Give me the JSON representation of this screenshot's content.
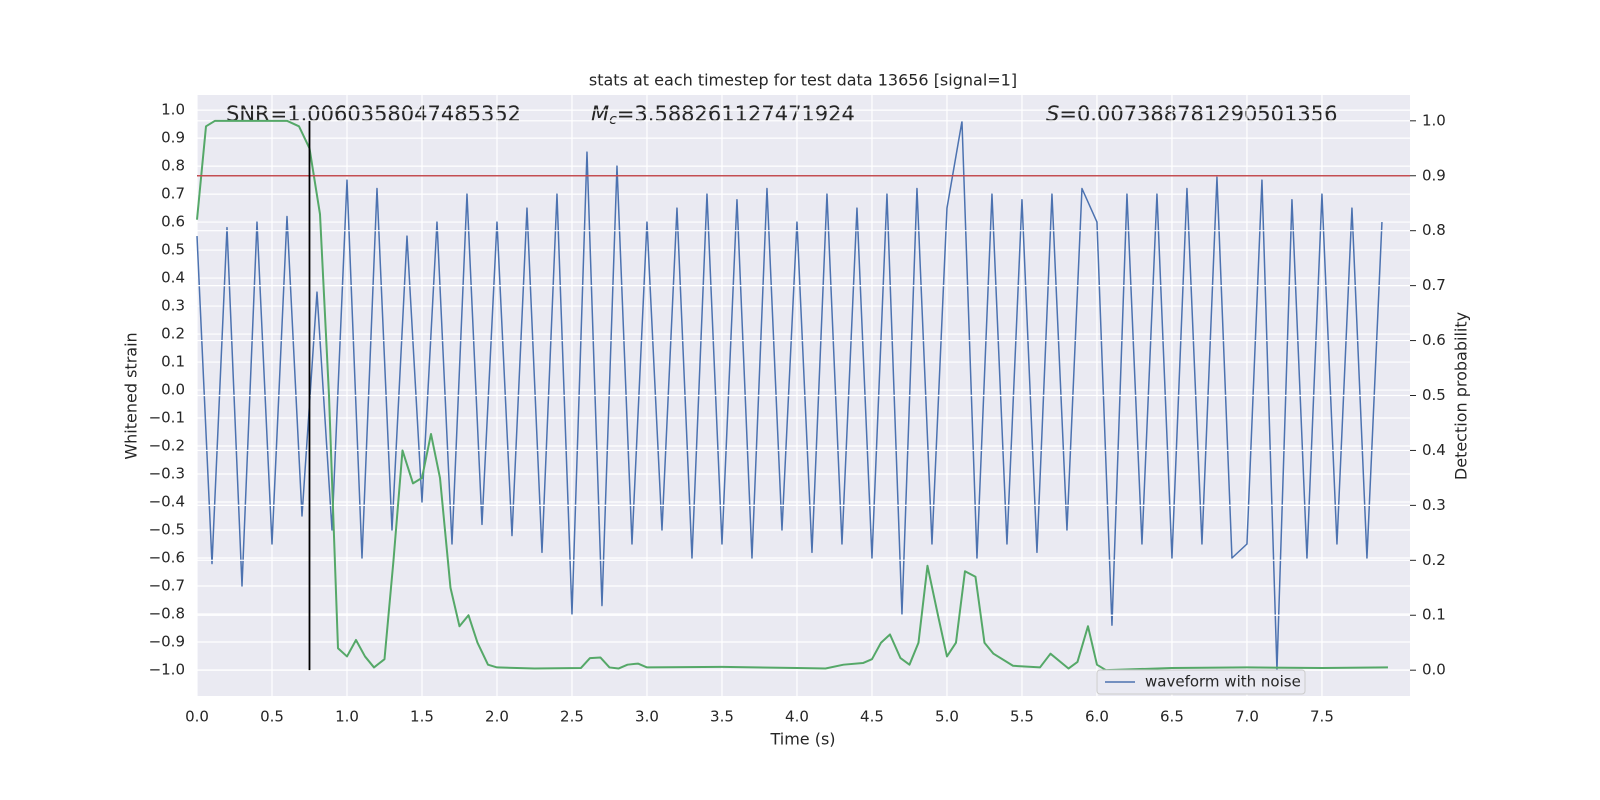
{
  "chart_data": {
    "type": "line",
    "title": "stats at each timestep for test data 13656 [signal=1]",
    "xlabel": "Time (s)",
    "ylabel": "Whitened strain",
    "y2label": "Detection probability",
    "annotations": [
      {
        "text": "SNR=1.0060358047485352"
      },
      {
        "symbol": "M",
        "subscript": "c",
        "text": "=3.588261127471924"
      },
      {
        "symbol": "S",
        "text": "=0.007388781290501356"
      }
    ],
    "xlim": [
      0,
      8.087
    ],
    "ylim": [
      -1.093,
      1.054
    ],
    "y2lim": [
      -0.047,
      1.047
    ],
    "xticks": [
      {
        "value": 0,
        "label": "0.0"
      },
      {
        "value": 0.5,
        "label": "0.5"
      },
      {
        "value": 1,
        "label": "1.0"
      },
      {
        "value": 1.5,
        "label": "1.5"
      },
      {
        "value": 2,
        "label": "2.0"
      },
      {
        "value": 2.5,
        "label": "2.5"
      },
      {
        "value": 3,
        "label": "3.0"
      },
      {
        "value": 3.5,
        "label": "3.5"
      },
      {
        "value": 4,
        "label": "4.0"
      },
      {
        "value": 4.5,
        "label": "4.5"
      },
      {
        "value": 5,
        "label": "5.0"
      },
      {
        "value": 5.5,
        "label": "5.5"
      },
      {
        "value": 6,
        "label": "6.0"
      },
      {
        "value": 6.5,
        "label": "6.5"
      },
      {
        "value": 7,
        "label": "7.0"
      },
      {
        "value": 7.5,
        "label": "7.5"
      }
    ],
    "yticks": [
      {
        "value": 1,
        "label": "1.0"
      },
      {
        "value": 0.9,
        "label": "0.9"
      },
      {
        "value": 0.8,
        "label": "0.8"
      },
      {
        "value": 0.7,
        "label": "0.7"
      },
      {
        "value": 0.6,
        "label": "0.6"
      },
      {
        "value": 0.5,
        "label": "0.5"
      },
      {
        "value": 0.4,
        "label": "0.4"
      },
      {
        "value": 0.3,
        "label": "0.3"
      },
      {
        "value": 0.2,
        "label": "0.2"
      },
      {
        "value": 0.1,
        "label": "0.1"
      },
      {
        "value": 0,
        "label": "0.0"
      },
      {
        "value": -0.1,
        "label": "−0.1"
      },
      {
        "value": -0.2,
        "label": "−0.2"
      },
      {
        "value": -0.3,
        "label": "−0.3"
      },
      {
        "value": -0.4,
        "label": "−0.4"
      },
      {
        "value": -0.5,
        "label": "−0.5"
      },
      {
        "value": -0.6,
        "label": "−0.6"
      },
      {
        "value": -0.7,
        "label": "−0.7"
      },
      {
        "value": -0.8,
        "label": "−0.8"
      },
      {
        "value": -0.9,
        "label": "−0.9"
      },
      {
        "value": -1,
        "label": "−1.0"
      }
    ],
    "y2ticks": [
      {
        "value": 1,
        "label": "1.0"
      },
      {
        "value": 0.9,
        "label": "0.9"
      },
      {
        "value": 0.8,
        "label": "0.8"
      },
      {
        "value": 0.7,
        "label": "0.7"
      },
      {
        "value": 0.6,
        "label": "0.6"
      },
      {
        "value": 0.5,
        "label": "0.5"
      },
      {
        "value": 0.4,
        "label": "0.4"
      },
      {
        "value": 0.3,
        "label": "0.3"
      },
      {
        "value": 0.2,
        "label": "0.2"
      },
      {
        "value": 0.1,
        "label": "0.1"
      },
      {
        "value": 0,
        "label": "0.0"
      }
    ],
    "grid": true,
    "legend": "lower right",
    "series": [
      {
        "name": "waveform with noise",
        "color": "#4c72b0",
        "x": [
          0,
          0.1,
          0.2,
          0.3,
          0.4,
          0.5,
          0.6,
          0.7,
          0.8,
          0.9,
          1,
          1.1,
          1.2,
          1.3,
          1.4,
          1.5,
          1.6,
          1.7,
          1.8,
          1.9,
          2,
          2.1,
          2.2,
          2.3,
          2.4,
          2.5,
          2.6,
          2.7,
          2.8,
          2.9,
          3,
          3.1,
          3.2,
          3.3,
          3.4,
          3.5,
          3.6,
          3.7,
          3.8,
          3.9,
          4,
          4.1,
          4.2,
          4.3,
          4.4,
          4.5,
          4.6,
          4.7,
          4.8,
          4.9,
          5,
          5.1,
          5.2,
          5.3,
          5.4,
          5.5,
          5.6,
          5.7,
          5.8,
          5.9,
          6,
          6.1,
          6.2,
          6.3,
          6.4,
          6.5,
          6.6,
          6.7,
          6.8,
          6.9,
          7,
          7.1,
          7.2,
          7.3,
          7.4,
          7.5,
          7.6,
          7.7,
          7.8,
          7.9
        ],
        "values": [
          0.55,
          -0.62,
          0.58,
          -0.7,
          0.6,
          -0.55,
          0.62,
          -0.45,
          0.35,
          -0.5,
          0.75,
          -0.6,
          0.72,
          -0.5,
          0.55,
          -0.4,
          0.6,
          -0.55,
          0.7,
          -0.48,
          0.6,
          -0.52,
          0.65,
          -0.58,
          0.7,
          -0.8,
          0.85,
          -0.77,
          0.8,
          -0.55,
          0.6,
          -0.5,
          0.65,
          -0.6,
          0.7,
          -0.55,
          0.68,
          -0.6,
          0.72,
          -0.5,
          0.6,
          -0.58,
          0.7,
          -0.55,
          0.65,
          -0.6,
          0.7,
          -0.8,
          0.72,
          -0.55,
          0.65,
          0.96,
          -0.6,
          0.7,
          -0.55,
          0.68,
          -0.58,
          0.7,
          -0.5,
          0.72,
          0.6,
          -0.84,
          0.7,
          -0.55,
          0.7,
          -0.6,
          0.72,
          -0.55,
          0.76,
          -0.6,
          -0.55,
          0.75,
          -1.0,
          0.68,
          -0.6,
          0.7,
          -0.55,
          0.65,
          -0.6,
          0.6
        ]
      },
      {
        "color": "#55a868",
        "axis": "y2",
        "x": [
          0,
          0.06,
          0.12,
          0.25,
          0.5,
          0.6,
          0.68,
          0.75,
          0.82,
          0.88,
          0.94,
          1.0,
          1.06,
          1.12,
          1.18,
          1.25,
          1.31,
          1.37,
          1.44,
          1.5,
          1.56,
          1.62,
          1.69,
          1.75,
          1.81,
          1.87,
          1.94,
          2.0,
          2.25,
          2.56,
          2.62,
          2.69,
          2.75,
          2.81,
          2.87,
          2.94,
          3.0,
          3.5,
          4.0,
          4.19,
          4.31,
          4.44,
          4.5,
          4.56,
          4.62,
          4.69,
          4.75,
          4.81,
          4.87,
          4.94,
          5.0,
          5.06,
          5.12,
          5.19,
          5.25,
          5.31,
          5.44,
          5.62,
          5.69,
          5.81,
          5.87,
          5.94,
          6.0,
          6.06,
          6.5,
          7.0,
          7.5,
          7.94
        ],
        "values": [
          0.82,
          0.99,
          1.0,
          1.0,
          1.0,
          1.0,
          0.99,
          0.95,
          0.83,
          0.5,
          0.04,
          0.025,
          0.055,
          0.025,
          0.005,
          0.02,
          0.2,
          0.4,
          0.34,
          0.35,
          0.43,
          0.35,
          0.15,
          0.08,
          0.1,
          0.05,
          0.01,
          0.005,
          0.003,
          0.004,
          0.022,
          0.023,
          0.005,
          0.003,
          0.01,
          0.012,
          0.005,
          0.006,
          0.004,
          0.003,
          0.01,
          0.013,
          0.02,
          0.05,
          0.065,
          0.022,
          0.01,
          0.05,
          0.19,
          0.1,
          0.025,
          0.05,
          0.18,
          0.17,
          0.05,
          0.03,
          0.008,
          0.005,
          0.03,
          0.003,
          0.015,
          0.08,
          0.01,
          0.0,
          0.004,
          0.005,
          0.004,
          0.005
        ]
      }
    ],
    "hlines": [
      {
        "y": 0.9,
        "axis": "y2",
        "color": "#c44e52"
      }
    ],
    "vlines": [
      {
        "x": 0.75,
        "ymin": 0,
        "ymax": 1,
        "axis": "y2",
        "color": "#000000"
      }
    ]
  }
}
